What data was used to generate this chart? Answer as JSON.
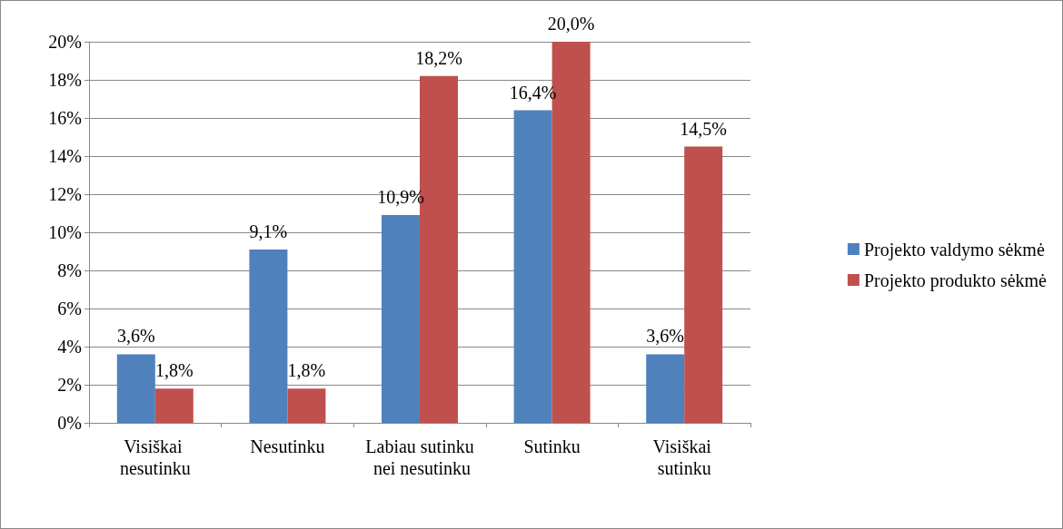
{
  "chart_data": {
    "type": "bar",
    "categories": [
      "Visiškai nesutinku",
      "Nesutinku",
      "Labiau sutinku nei nesutinku",
      "Sutinku",
      "Visiškai sutinku"
    ],
    "series": [
      {
        "name": "Projekto valdymo sėkmė",
        "color": "#4f81bd",
        "values": [
          3.6,
          9.1,
          10.9,
          16.4,
          3.6
        ],
        "value_labels": [
          "3,6%",
          "9,1%",
          "10,9%",
          "16,4%",
          "3,6%"
        ]
      },
      {
        "name": "Projekto produkto sėkmė",
        "color": "#c0504d",
        "values": [
          1.8,
          1.8,
          18.2,
          20.0,
          14.5
        ],
        "value_labels": [
          "1,8%",
          "1,8%",
          "18,2%",
          "20,0%",
          "14,5%"
        ]
      }
    ],
    "ylim": [
      0,
      20
    ],
    "yticks": [
      {
        "value": 0,
        "label": "0%"
      },
      {
        "value": 2,
        "label": "2%"
      },
      {
        "value": 4,
        "label": "4%"
      },
      {
        "value": 6,
        "label": "6%"
      },
      {
        "value": 8,
        "label": "8%"
      },
      {
        "value": 10,
        "label": "10%"
      },
      {
        "value": 12,
        "label": "12%"
      },
      {
        "value": 14,
        "label": "14%"
      },
      {
        "value": 16,
        "label": "16%"
      },
      {
        "value": 18,
        "label": "18%"
      },
      {
        "value": 20,
        "label": "20%"
      }
    ],
    "grid": "y",
    "legend": "right"
  }
}
